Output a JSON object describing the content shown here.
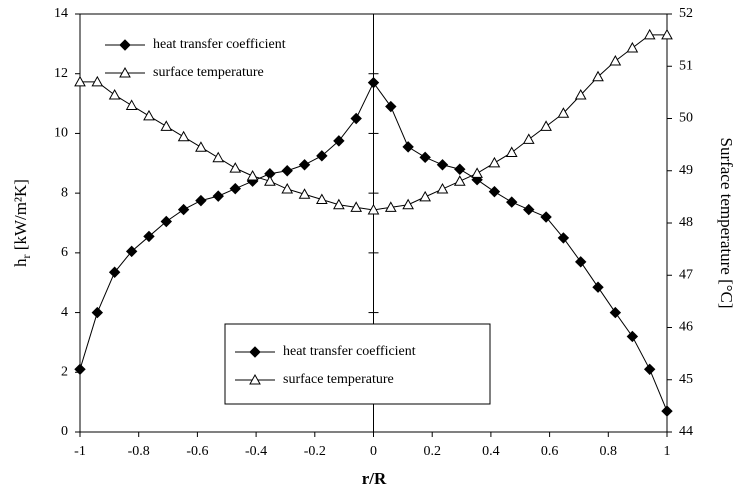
{
  "chart_data": {
    "type": "line",
    "x_label": "r/R",
    "y_label": "h",
    "y_label_sub": "r",
    "y_label_rest": " [kW/m²K]",
    "y2_label": "Surface temperature [°C]",
    "x": [
      -1,
      -0.941,
      -0.882,
      -0.824,
      -0.765,
      -0.706,
      -0.647,
      -0.588,
      -0.529,
      -0.471,
      -0.412,
      -0.353,
      -0.294,
      -0.235,
      -0.176,
      -0.118,
      -0.059,
      0,
      0.059,
      0.118,
      0.176,
      0.235,
      0.294,
      0.353,
      0.412,
      0.471,
      0.529,
      0.588,
      0.647,
      0.706,
      0.765,
      0.824,
      0.882,
      0.941,
      1
    ],
    "series": [
      {
        "name": "heat transfer coefficient",
        "color": "#000000",
        "marker": "diamond",
        "values": [
          2.1,
          4.0,
          5.35,
          6.05,
          6.55,
          7.05,
          7.45,
          7.75,
          7.9,
          8.15,
          8.4,
          8.65,
          8.75,
          8.95,
          9.25,
          9.75,
          10.5,
          11.7,
          10.9,
          9.55,
          9.2,
          8.95,
          8.8,
          8.45,
          8.05,
          7.7,
          7.45,
          7.2,
          6.5,
          5.7,
          4.85,
          4.0,
          3.2,
          2.1,
          0.7
        ]
      },
      {
        "name": "surface temperature",
        "color": "#000000",
        "marker": "triangle",
        "axis": "y2",
        "values": [
          50.7,
          50.7,
          50.45,
          50.25,
          50.05,
          49.85,
          49.65,
          49.45,
          49.25,
          49.05,
          48.9,
          48.8,
          48.65,
          48.55,
          48.45,
          48.35,
          48.3,
          48.25,
          48.3,
          48.35,
          48.5,
          48.65,
          48.8,
          48.95,
          49.15,
          49.35,
          49.6,
          49.85,
          50.1,
          50.45,
          50.8,
          51.1,
          51.35,
          51.6,
          51.6
        ]
      }
    ],
    "xlim": [
      -1,
      1
    ],
    "xticks": [
      -1,
      -0.8,
      -0.6,
      -0.4,
      -0.2,
      0,
      0.2,
      0.4,
      0.6,
      0.8,
      1
    ],
    "ylim": [
      0,
      14
    ],
    "yticks": [
      0,
      2,
      4,
      6,
      8,
      10,
      12,
      14
    ],
    "y2lim": [
      44,
      52
    ],
    "y2ticks": [
      44,
      45,
      46,
      47,
      48,
      49,
      50,
      51,
      52
    ],
    "legend": [
      "upper left",
      "lower center"
    ]
  }
}
